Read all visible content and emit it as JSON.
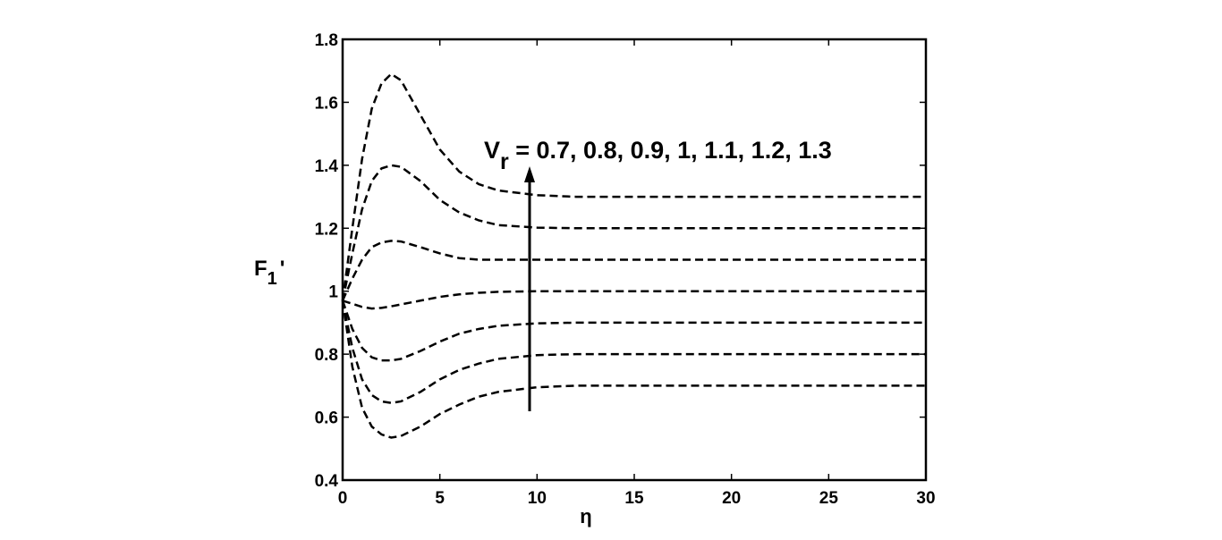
{
  "chart_data": {
    "type": "line",
    "annotation": {
      "base": "V",
      "sub": "r",
      "rest": " = 0.7, 0.8, 0.9, 1, 1.1, 1.2, 1.3"
    },
    "xlabel": "η",
    "ylabel": {
      "base": "F",
      "sub": "1",
      "rest": "'"
    },
    "x": [
      0,
      0.5,
      1,
      1.5,
      2,
      2.5,
      3,
      4,
      5,
      6,
      7,
      8,
      10,
      12,
      15,
      20,
      25,
      30
    ],
    "series": [
      {
        "color": "#000000",
        "values": [
          0.97,
          1.2,
          1.42,
          1.58,
          1.66,
          1.69,
          1.67,
          1.56,
          1.45,
          1.38,
          1.34,
          1.32,
          1.305,
          1.3,
          1.3,
          1.3,
          1.3,
          1.3
        ]
      },
      {
        "color": "#000000",
        "values": [
          0.97,
          1.12,
          1.26,
          1.35,
          1.39,
          1.4,
          1.395,
          1.35,
          1.29,
          1.25,
          1.225,
          1.21,
          1.202,
          1.2,
          1.2,
          1.2,
          1.2,
          1.2
        ]
      },
      {
        "color": "#000000",
        "values": [
          0.97,
          1.04,
          1.1,
          1.14,
          1.155,
          1.16,
          1.158,
          1.14,
          1.12,
          1.105,
          1.1,
          1.1,
          1.1,
          1.1,
          1.1,
          1.1,
          1.1,
          1.1
        ]
      },
      {
        "color": "#000000",
        "values": [
          0.97,
          0.96,
          0.95,
          0.945,
          0.947,
          0.952,
          0.958,
          0.97,
          0.982,
          0.99,
          0.995,
          0.998,
          1,
          1,
          1,
          1,
          1,
          1
        ]
      },
      {
        "color": "#000000",
        "values": [
          0.97,
          0.88,
          0.82,
          0.79,
          0.78,
          0.78,
          0.785,
          0.81,
          0.84,
          0.865,
          0.88,
          0.89,
          0.898,
          0.9,
          0.9,
          0.9,
          0.9,
          0.9
        ]
      },
      {
        "color": "#000000",
        "values": [
          0.97,
          0.82,
          0.72,
          0.67,
          0.65,
          0.645,
          0.65,
          0.68,
          0.72,
          0.75,
          0.77,
          0.785,
          0.797,
          0.8,
          0.8,
          0.8,
          0.8,
          0.8
        ]
      },
      {
        "color": "#000000",
        "values": [
          0.97,
          0.76,
          0.63,
          0.57,
          0.545,
          0.535,
          0.54,
          0.57,
          0.61,
          0.64,
          0.665,
          0.68,
          0.695,
          0.7,
          0.7,
          0.7,
          0.7,
          0.7
        ]
      }
    ],
    "xlim": [
      0,
      30
    ],
    "xticks": [
      0,
      5,
      10,
      15,
      20,
      25,
      30
    ],
    "ylim": [
      0.4,
      1.8
    ],
    "yticks": [
      0.4,
      0.6,
      0.8,
      1,
      1.2,
      1.4,
      1.6,
      1.8
    ],
    "grid": false,
    "line_style": "dashed"
  }
}
